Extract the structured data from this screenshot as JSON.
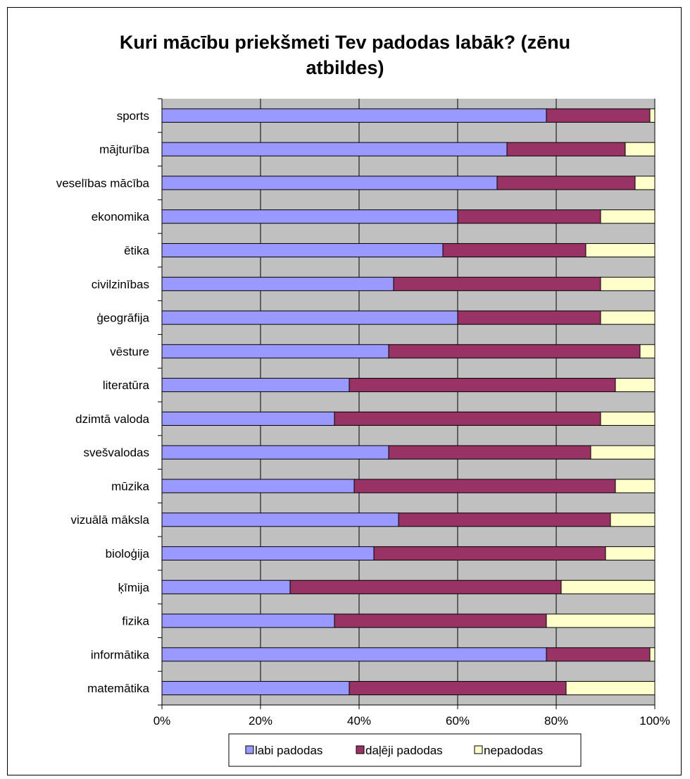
{
  "chart_data": {
    "type": "bar",
    "orientation": "horizontal",
    "stacked": "percent",
    "title_line1": "Kuri mācību priekšmeti Tev padodas labāk? (zēnu",
    "title_line2": "atbildes)",
    "categories": [
      "sports",
      "mājturība",
      "veselības mācība",
      "ekonomika",
      "ētika",
      "civilzinības",
      "ģeogrāfija",
      "vēsture",
      "literatūra",
      "dzimtā valoda",
      "svešvalodas",
      "mūzika",
      "vizuālā māksla",
      "bioloģija",
      "ķīmija",
      "fizika",
      "informātika",
      "matemātika"
    ],
    "series": [
      {
        "name": "labi padodas",
        "color": "#9999ff",
        "values": [
          78,
          70,
          68,
          60,
          57,
          47,
          60,
          46,
          38,
          35,
          46,
          39,
          48,
          43,
          26,
          35,
          78,
          38
        ]
      },
      {
        "name": "daļēji padodas",
        "color": "#993366",
        "values": [
          21,
          24,
          28,
          29,
          29,
          42,
          29,
          51,
          54,
          54,
          41,
          53,
          43,
          47,
          55,
          43,
          21,
          44
        ]
      },
      {
        "name": "nepadodas",
        "color": "#ffffcc",
        "values": [
          1,
          6,
          4,
          11,
          14,
          11,
          11,
          3,
          8,
          11,
          13,
          8,
          9,
          10,
          19,
          22,
          1,
          18
        ]
      }
    ],
    "x_ticks": [
      "0%",
      "20%",
      "40%",
      "60%",
      "80%",
      "100%"
    ],
    "xlim": [
      0,
      100
    ],
    "grid": true,
    "plot_background": "#c0c0c0",
    "legend_position": "bottom"
  }
}
